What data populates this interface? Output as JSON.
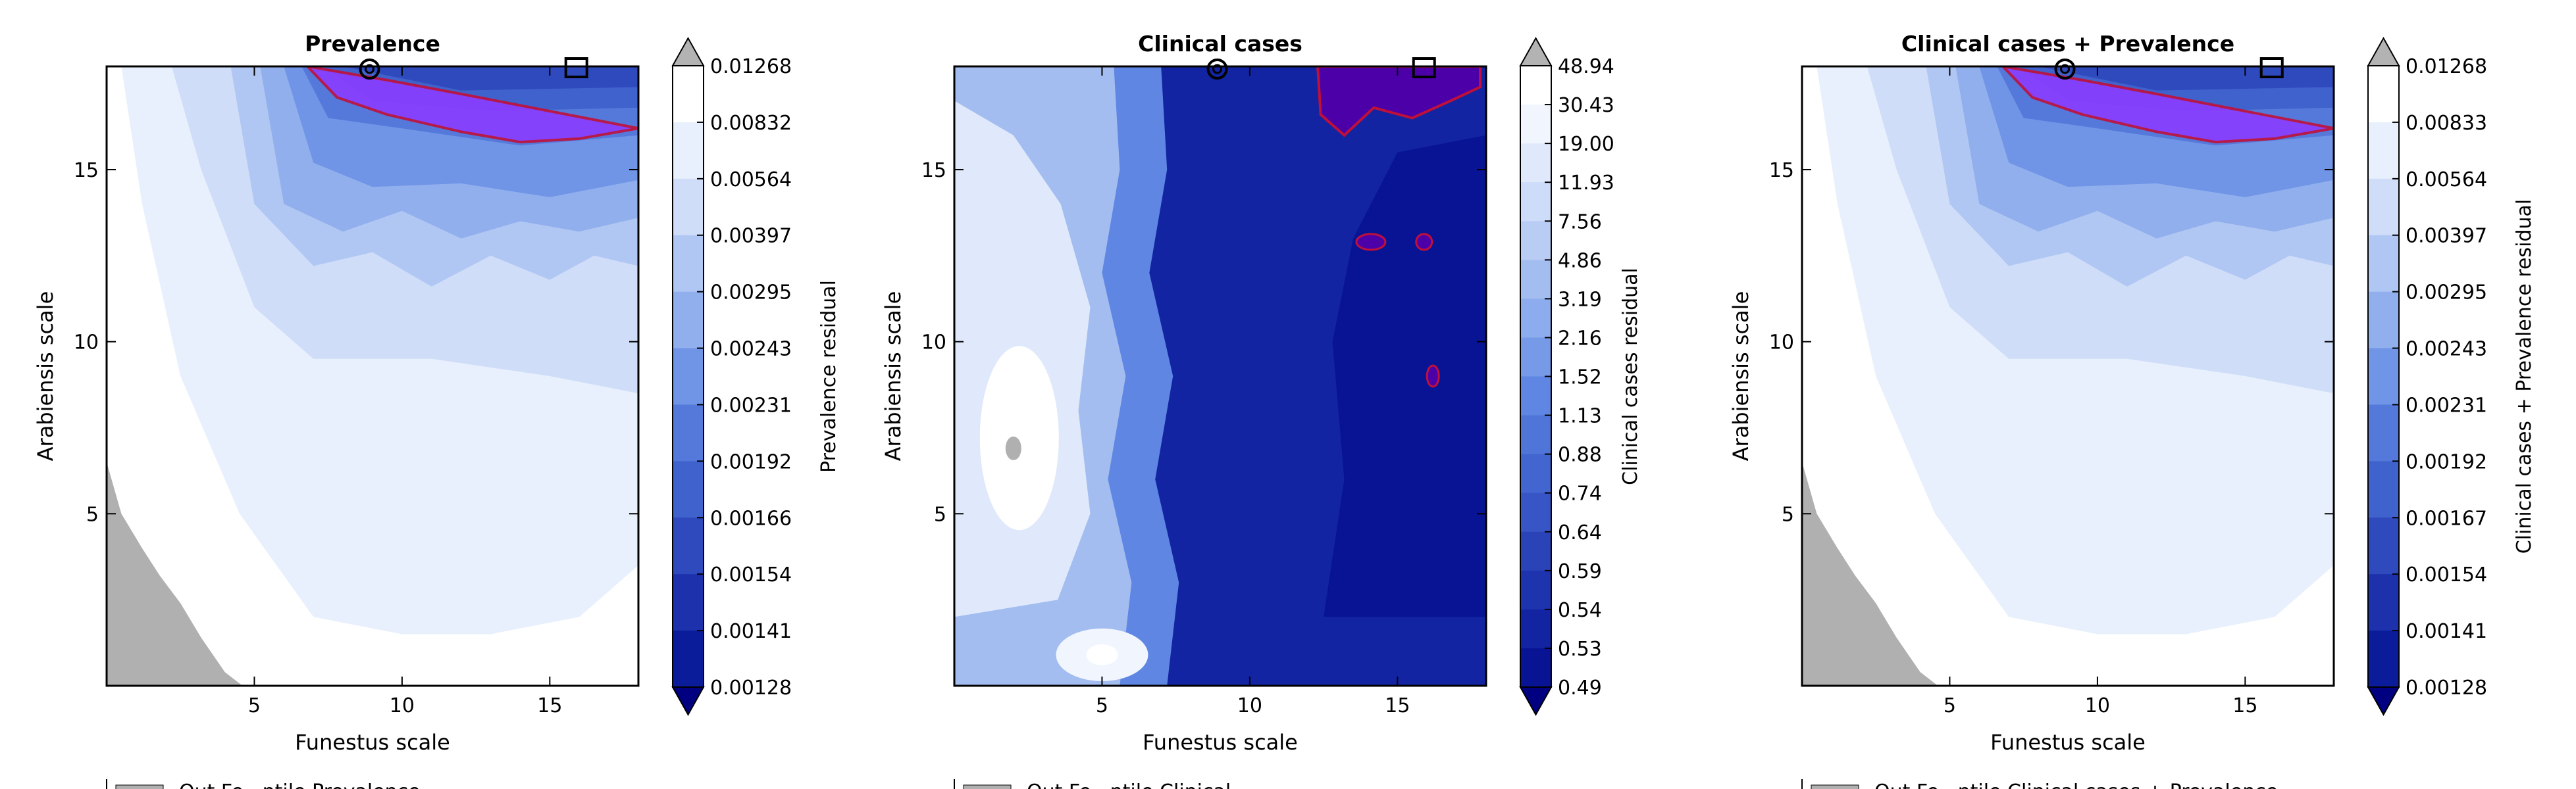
{
  "figure": {
    "colors": {
      "above_max": "#b3b3b3",
      "below_min": "#000080",
      "axes": "#000000",
      "gray_region": "#b0b0b0",
      "highlight_fill": "#8a3dff",
      "highlight_edge": "#c0103a",
      "marker": "#000000"
    },
    "palette": [
      "#000080",
      "#0a1a9a",
      "#1a2daa",
      "#2a44b8",
      "#3b5ac8",
      "#4a6fd6",
      "#5f86e2",
      "#7ea0ea",
      "#9cb7ef",
      "#b9cdf4",
      "#d4e1f9",
      "#ebf1fd",
      "#ffffff"
    ]
  },
  "chart_data": [
    {
      "type": "contour",
      "title": "Prevalence",
      "xlabel": "Funestus scale",
      "ylabel": "Arabiensis scale",
      "xlim": [
        0,
        18
      ],
      "ylim": [
        0,
        18
      ],
      "xticks": [
        5,
        10,
        15
      ],
      "yticks": [
        5,
        10,
        15
      ],
      "colorbar": {
        "label": "Prevalence residual",
        "levels": [
          "0.01268",
          "0.00832",
          "0.00564",
          "0.00397",
          "0.00295",
          "0.00243",
          "0.00231",
          "0.00192",
          "0.00166",
          "0.00154",
          "0.00141",
          "0.00128"
        ]
      },
      "legend_fragment": "Out Fe...ntile Prevalence"
    },
    {
      "type": "contour",
      "title": "Clinical cases",
      "xlabel": "Funestus scale",
      "ylabel": "Arabiensis scale",
      "xlim": [
        0,
        18
      ],
      "ylim": [
        0,
        18
      ],
      "xticks": [
        5,
        10,
        15
      ],
      "yticks": [
        5,
        10,
        15
      ],
      "colorbar": {
        "label": "Clinical cases residual",
        "levels": [
          "48.94",
          "30.43",
          "19.00",
          "11.93",
          "7.56",
          "4.86",
          "3.19",
          "2.16",
          "1.52",
          "1.13",
          "0.88",
          "0.74",
          "0.64",
          "0.59",
          "0.54",
          "0.53",
          "0.49"
        ]
      },
      "legend_fragment": "Out Fe...ntile Clinical"
    },
    {
      "type": "contour",
      "title": "Clinical cases + Prevalence",
      "xlabel": "Funestus scale",
      "ylabel": "Arabiensis scale",
      "xlim": [
        0,
        18
      ],
      "ylim": [
        0,
        18
      ],
      "xticks": [
        5,
        10,
        15
      ],
      "yticks": [
        5,
        10,
        15
      ],
      "colorbar": {
        "label": "Clinical cases + Prevalence residual",
        "levels": [
          "0.01268",
          "0.00833",
          "0.00564",
          "0.00397",
          "0.00295",
          "0.00243",
          "0.00231",
          "0.00192",
          "0.00167",
          "0.00154",
          "0.00141",
          "0.00128"
        ]
      },
      "legend_fragment": "Out Fe...ntile Clinical cases + Prevalence"
    }
  ]
}
